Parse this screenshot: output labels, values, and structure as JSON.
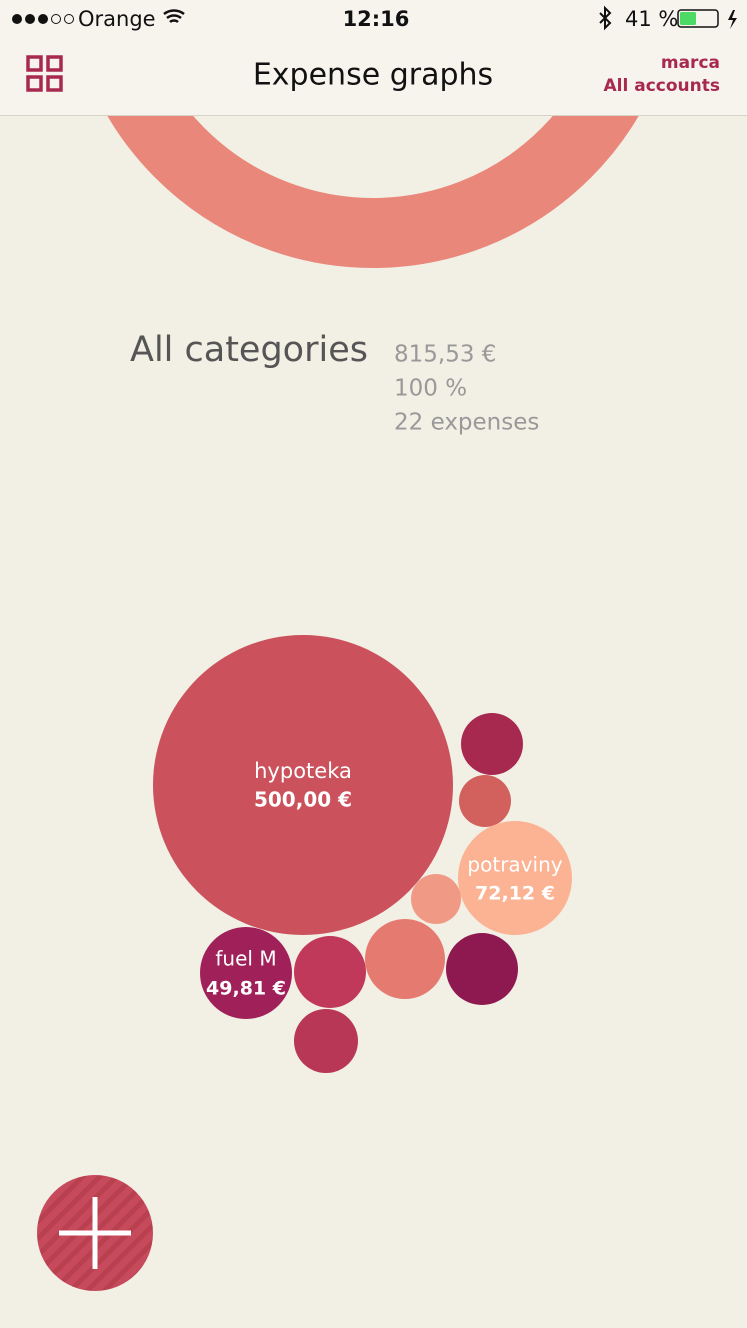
{
  "status_bar": {
    "carrier": "Orange",
    "time": "12:16",
    "battery": "41 %"
  },
  "header": {
    "title": "Expense graphs",
    "user": "marca",
    "account": "All accounts"
  },
  "summary": {
    "title": "All categories",
    "amount": "815,53 €",
    "percent": "100 %",
    "count": "22 expenses"
  },
  "bubbles": [
    {
      "label": "hypoteka",
      "amount": "500,00 €"
    },
    {
      "label": "potraviny",
      "amount": "72,12 €"
    },
    {
      "label": "fuel M",
      "amount": "49,81 €"
    }
  ]
}
